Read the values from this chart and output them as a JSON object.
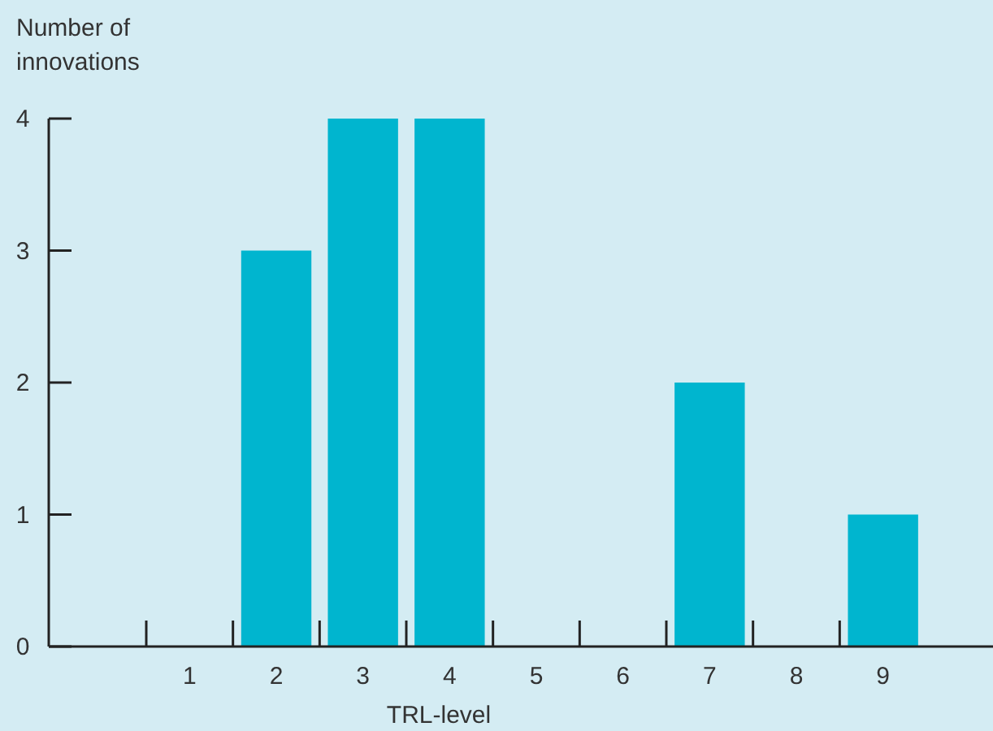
{
  "chart_data": {
    "type": "bar",
    "xlabel": "TRL-level",
    "ylabel": "Number of\ninnovations",
    "categories": [
      "1",
      "2",
      "3",
      "4",
      "5",
      "6",
      "7",
      "8",
      "9"
    ],
    "values": [
      0,
      3,
      4,
      4,
      0,
      0,
      2,
      0,
      1
    ],
    "color": "#00b5cf",
    "ylim": [
      0,
      4
    ],
    "yticks": [
      0,
      1,
      2,
      3,
      4
    ],
    "grid": false
  }
}
